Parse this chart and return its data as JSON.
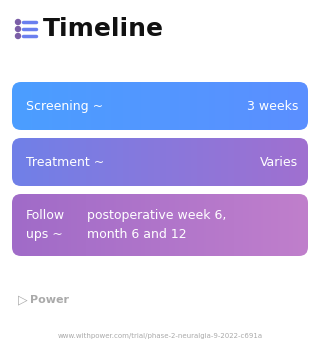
{
  "title": "Timeline",
  "title_fontsize": 18,
  "title_color": "#111111",
  "icon_color_dot": "#7B5EA7",
  "icon_color_line": "#6B7FEF",
  "background_color": "#ffffff",
  "rows": [
    {
      "label": "Screening ~",
      "value": "3 weeks",
      "color_left": "#4B9EFF",
      "color_right": "#5B8FFF",
      "text_color": "#ffffff",
      "multiline": false
    },
    {
      "label": "Treatment ~",
      "value": "Varies",
      "color_left": "#7080E8",
      "color_right": "#A070D0",
      "text_color": "#ffffff",
      "multiline": false
    },
    {
      "label": "Follow\nups ~",
      "value": "postoperative week 6,\nmonth 6 and 12",
      "color_left": "#A06BC8",
      "color_right": "#C07FCC",
      "text_color": "#ffffff",
      "multiline": true
    }
  ],
  "footer_logo_text": "Power",
  "footer_url": "www.withpower.com/trial/phase-2-neuralgia-9-2022-c691a",
  "footer_color": "#aaaaaa",
  "row_fontsize": 9,
  "footer_fontsize": 8,
  "footer_url_fontsize": 5
}
